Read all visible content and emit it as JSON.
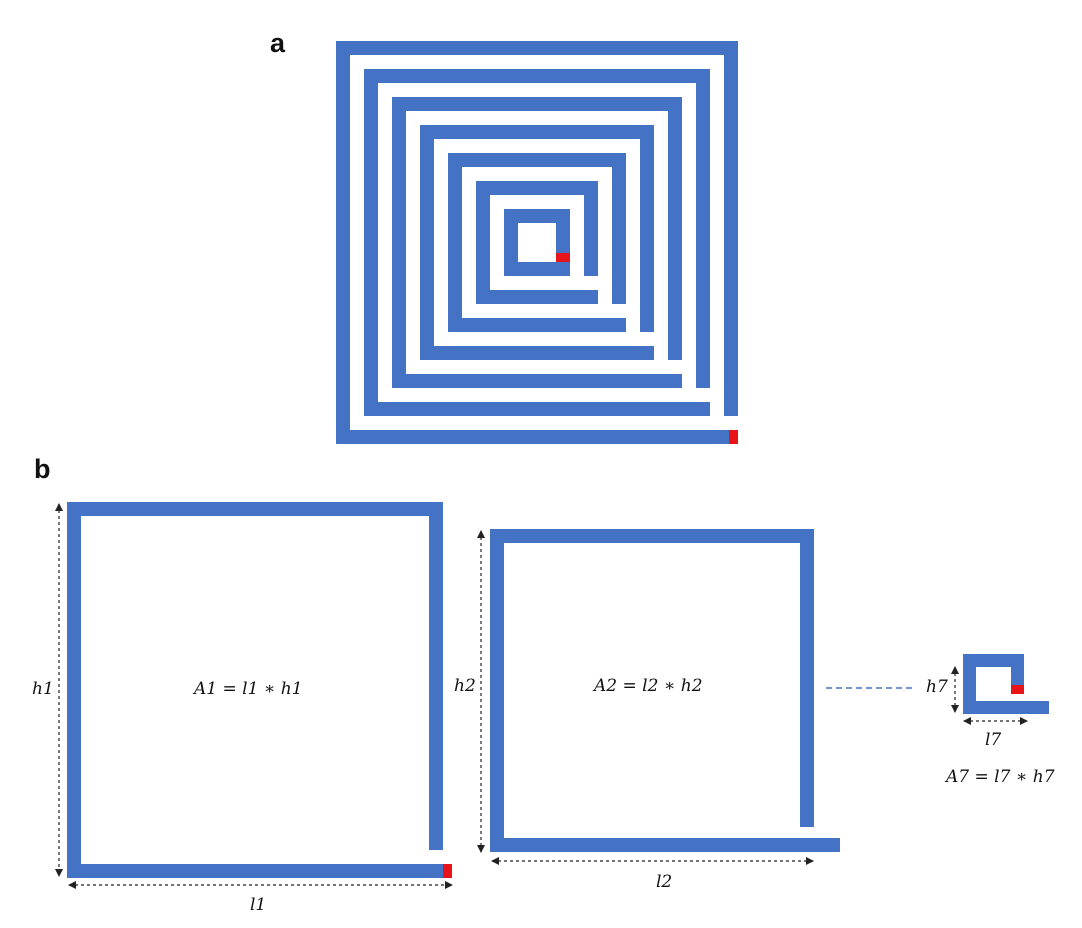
{
  "colors": {
    "coil": "#4472c4",
    "coil_edge": "#3a63ad",
    "terminal": "#e8141a",
    "connector": "#4472c4",
    "dimension": "#222222"
  },
  "panel_a": {
    "label": "a"
  },
  "panel_b": {
    "label": "b",
    "turn1": {
      "length_label": "l1",
      "height_label": "h1",
      "area_formula": "A1 = l1 ∗ h1"
    },
    "turn2": {
      "length_label": "l2",
      "height_label": "h2",
      "area_formula": "A2 = l2 ∗ h2"
    },
    "turn7": {
      "length_label": "l7",
      "height_label": "h7",
      "area_formula": "A7 = l7 ∗ h7"
    }
  }
}
